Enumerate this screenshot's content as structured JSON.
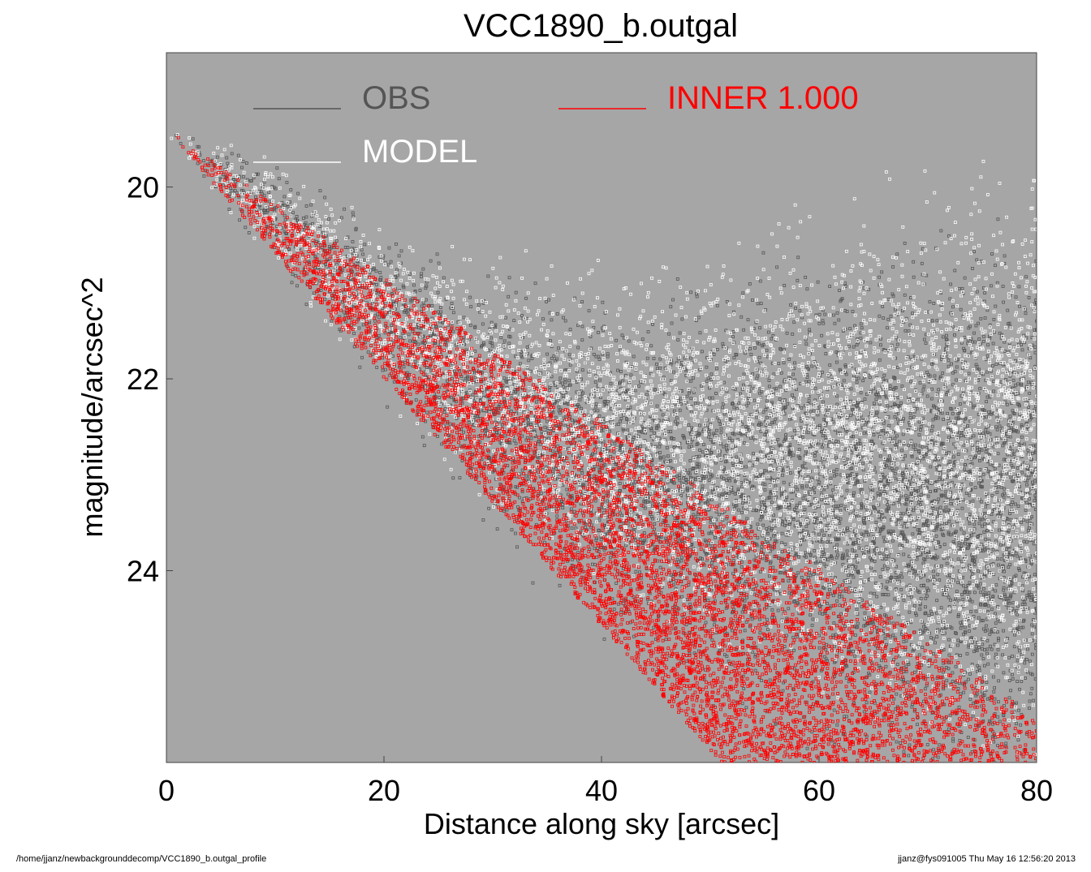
{
  "chart_data": {
    "type": "scatter",
    "title": "VCC1890_b.outgal",
    "xlabel": "Distance along sky [arcsec]",
    "ylabel": "magnitude/arcsec^2",
    "xlim": [
      0,
      80
    ],
    "ylim": [
      26.0,
      18.6
    ],
    "y_inverted": true,
    "x_ticks": [
      "0",
      "20",
      "40",
      "60",
      "80"
    ],
    "y_ticks": [
      "20",
      "22",
      "24"
    ],
    "x_tick_values": [
      0,
      20,
      40,
      60,
      80
    ],
    "y_tick_values": [
      20,
      22,
      24
    ],
    "plot_background": "#a6a6a6",
    "grid": false,
    "legend_placement": "top",
    "legend": [
      {
        "label": "OBS",
        "color": "#555555"
      },
      {
        "label": "MODEL",
        "color": "#ffffff"
      },
      {
        "label": "INNER  1.000",
        "color": "#ff0000"
      }
    ],
    "series": [
      {
        "role": "obs",
        "color": "#555555",
        "marker": "open-square",
        "trend": {
          "x": [
            0,
            10,
            20,
            30,
            40,
            50,
            60,
            70,
            80
          ],
          "y": [
            19.4,
            20.3,
            21.3,
            22.3,
            22.9,
            23.2,
            23.3,
            23.4,
            23.5
          ]
        }
      },
      {
        "role": "model",
        "color": "#ffffff",
        "marker": "open-square",
        "trend": {
          "x": [
            0,
            10,
            20,
            30,
            40,
            50,
            60,
            70,
            80
          ],
          "y": [
            19.4,
            20.3,
            21.3,
            22.1,
            22.5,
            22.7,
            22.8,
            22.9,
            22.9
          ]
        }
      },
      {
        "role": "inner",
        "color": "#ff0000",
        "marker": "open-square",
        "upper_edge": {
          "x": [
            0,
            80
          ],
          "y": [
            19.4,
            25.5
          ]
        },
        "lower_edge": {
          "x": [
            0,
            51
          ],
          "y": [
            19.4,
            26.0
          ]
        }
      }
    ]
  },
  "footer": {
    "left": "/home/jjanz/newbackgrounddecomp/VCC1890_b.outgal_profile",
    "right": "jjanz@fys091005  Thu May 16 12:56:20 2013"
  }
}
